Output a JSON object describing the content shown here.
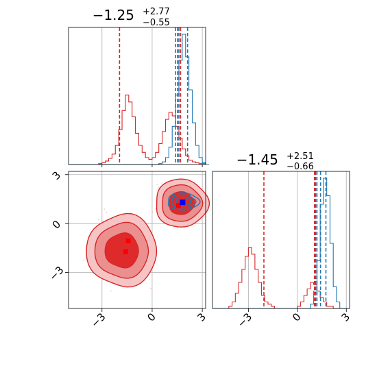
{
  "chart_data": {
    "type": "corner",
    "colors": {
      "series_a": "#d62728",
      "series_b": "#1f77b4",
      "marker_a": "#ff0000",
      "marker_b": "#0000ff"
    },
    "grid": true,
    "params": [
      {
        "title_main": "−1.25",
        "title_sup": "+2.77",
        "title_sub": "−0.55"
      },
      {
        "title_main": "−1.45",
        "title_sup": "+2.51",
        "title_sub": "−0.66"
      }
    ],
    "x_range": [
      -5.0,
      3.2
    ],
    "y_range": [
      -5.2,
      3.2
    ],
    "ticks": [
      {
        "value": -3,
        "label": "−3"
      },
      {
        "value": 0,
        "label": "0"
      },
      {
        "value": 3,
        "label": "3"
      }
    ],
    "hist_1": {
      "bin_edges_start": -5.0,
      "bin_width": 0.2,
      "red_counts": [
        0,
        0,
        0,
        0,
        0,
        0,
        0,
        0,
        0,
        1,
        2,
        4,
        7,
        12,
        22,
        40,
        62,
        80,
        72,
        55,
        36,
        22,
        14,
        8,
        6,
        8,
        14,
        24,
        38,
        52,
        60,
        56,
        44,
        30,
        18,
        10,
        5,
        3,
        2,
        1,
        1,
        0
      ],
      "blue_counts": [
        0,
        0,
        0,
        0,
        0,
        0,
        0,
        0,
        0,
        0,
        0,
        0,
        0,
        0,
        0,
        0,
        0,
        0,
        0,
        0,
        0,
        0,
        0,
        0,
        0,
        0,
        0,
        1,
        3,
        8,
        20,
        44,
        80,
        120,
        150,
        124,
        86,
        48,
        22,
        8,
        2,
        0
      ],
      "red_lines": [
        -1.95,
        1.52,
        1.7
      ],
      "blue_lines": [
        1.4,
        1.6,
        2.12
      ]
    },
    "hist_2": {
      "bin_edges_start": -5.2,
      "bin_width": 0.2,
      "red_counts": [
        0,
        0,
        0,
        0,
        0,
        1,
        3,
        7,
        12,
        18,
        24,
        28,
        25,
        18,
        12,
        6,
        3,
        2,
        1,
        0,
        0,
        0,
        0,
        0,
        0,
        0,
        1,
        3,
        6,
        9,
        12,
        11,
        8,
        5,
        3,
        1,
        1,
        0,
        0,
        0,
        0,
        0
      ],
      "blue_counts": [
        0,
        0,
        0,
        0,
        0,
        0,
        0,
        0,
        0,
        0,
        0,
        0,
        0,
        0,
        0,
        0,
        0,
        0,
        0,
        0,
        0,
        0,
        0,
        0,
        0,
        0,
        0,
        0,
        0,
        0,
        2,
        8,
        22,
        48,
        60,
        52,
        30,
        10,
        3,
        0,
        0,
        0
      ],
      "red_lines": [
        -2.05,
        1.05,
        1.12
      ],
      "blue_lines": [
        1.2,
        1.42,
        1.75
      ]
    },
    "joint": {
      "red_blob_1": {
        "center": [
          -1.8,
          -1.65
        ],
        "sigma": [
          1.0,
          1.05
        ]
      },
      "red_blob_2": {
        "center": [
          1.75,
          1.25
        ],
        "sigma": [
          0.75,
          0.7
        ]
      },
      "blue_blob": {
        "center": [
          1.85,
          1.35
        ],
        "sigma": [
          0.45,
          0.25
        ]
      },
      "contour_levels": [
        1.0,
        1.6,
        2.1
      ],
      "red_markers": [
        [
          -1.43,
          -1.06
        ],
        [
          -1.58,
          -1.72
        ],
        [
          1.58,
          1.12
        ]
      ],
      "blue_markers": [
        [
          1.82,
          1.3
        ]
      ]
    }
  }
}
